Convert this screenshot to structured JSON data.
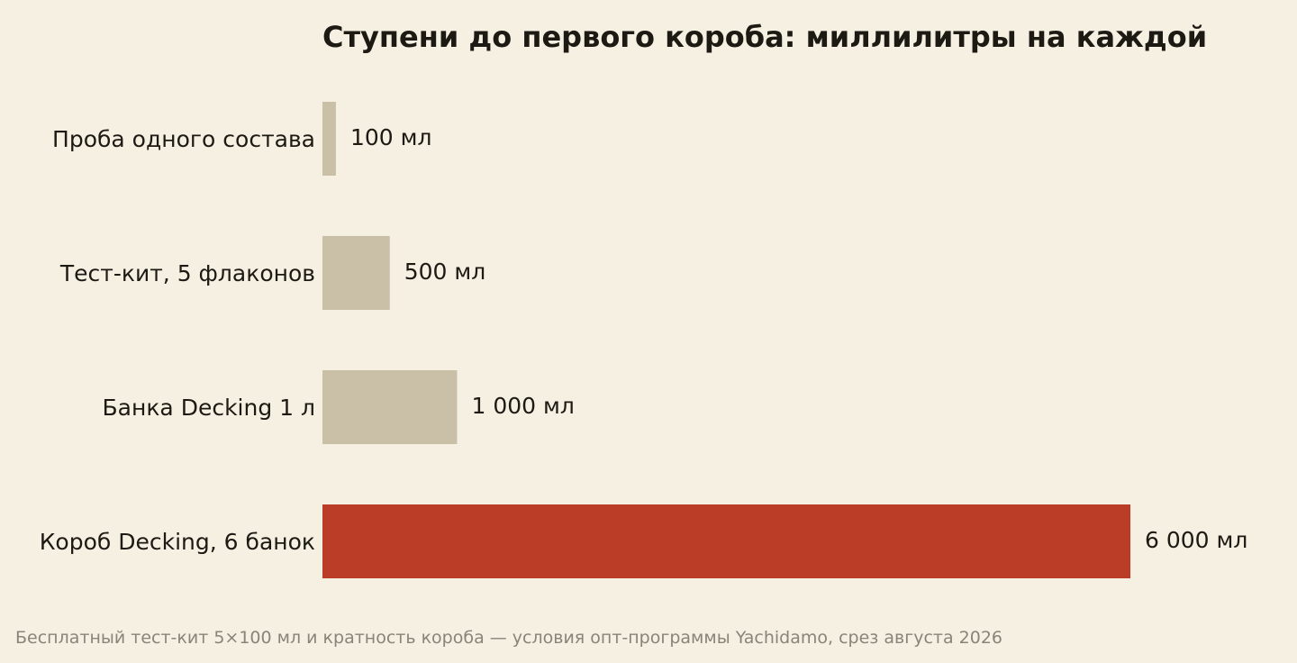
{
  "chart_data": {
    "type": "bar",
    "orientation": "horizontal",
    "title": "Ступени до первого короба: миллилитры на каждой",
    "categories": [
      "Проба одного состава",
      "Тест-кит, 5 флаконов",
      "Банка Decking 1 л",
      "Короб Decking, 6 банок"
    ],
    "values": [
      100,
      500,
      1000,
      6000
    ],
    "value_labels": [
      "100 мл",
      "500 мл",
      "1 000 мл",
      "6 000 мл"
    ],
    "unit": "мл",
    "xlim": [
      0,
      6000
    ],
    "grid": false,
    "colors": {
      "default": "#c9c0a7",
      "highlight": "#bb3d27"
    },
    "highlight_index": 3
  },
  "footnote": "Бесплатный тест-кит 5×100 мл и кратность короба — условия опт-программы Yachidamo, срез августа 2026"
}
